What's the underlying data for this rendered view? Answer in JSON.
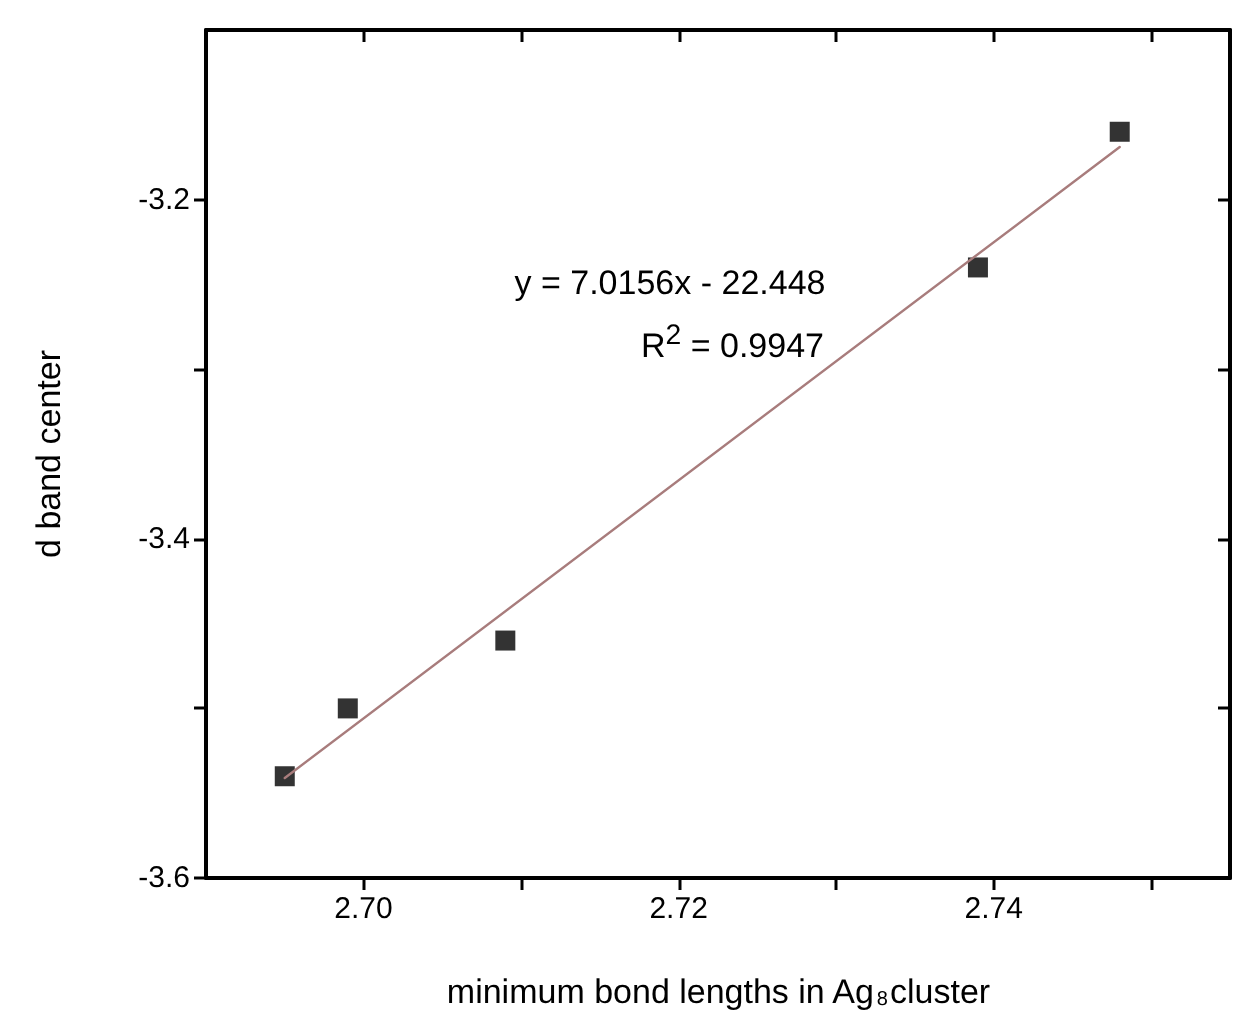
{
  "chart_data": {
    "type": "scatter",
    "xlabel": "minimum bond lengths in Ag$_{8}$cluster",
    "ylabel": "d band center",
    "annotations": [
      "y = 7.0156x - 22.448",
      "R$^{2}$ = 0.9947"
    ],
    "xlim": [
      2.69,
      2.755
    ],
    "ylim": [
      -3.6,
      -3.1
    ],
    "xticks": [
      {
        "value": 2.7,
        "label": "2.70"
      },
      {
        "value": 2.71,
        "label": null
      },
      {
        "value": 2.72,
        "label": "2.72"
      },
      {
        "value": 2.73,
        "label": null
      },
      {
        "value": 2.74,
        "label": "2.74"
      },
      {
        "value": 2.75,
        "label": null
      }
    ],
    "yticks": [
      -3.6,
      {
        "value": -3.5,
        "label": null
      },
      -3.4,
      {
        "value": -3.3,
        "label": null
      },
      -3.2
    ],
    "line_style": "solid",
    "series": [
      {
        "marker": "square",
        "color": "#000000",
        "x": [
          2.695,
          2.699,
          2.709,
          2.739,
          2.748
        ],
        "values": [
          -3.54,
          -3.5,
          -3.46,
          -3.24,
          -3.16
        ]
      },
      {
        "type": "line",
        "color": "#a87c7c",
        "x": [
          2.695,
          2.748
        ],
        "values": [
          -3.541,
          -3.169
        ]
      }
    ]
  }
}
